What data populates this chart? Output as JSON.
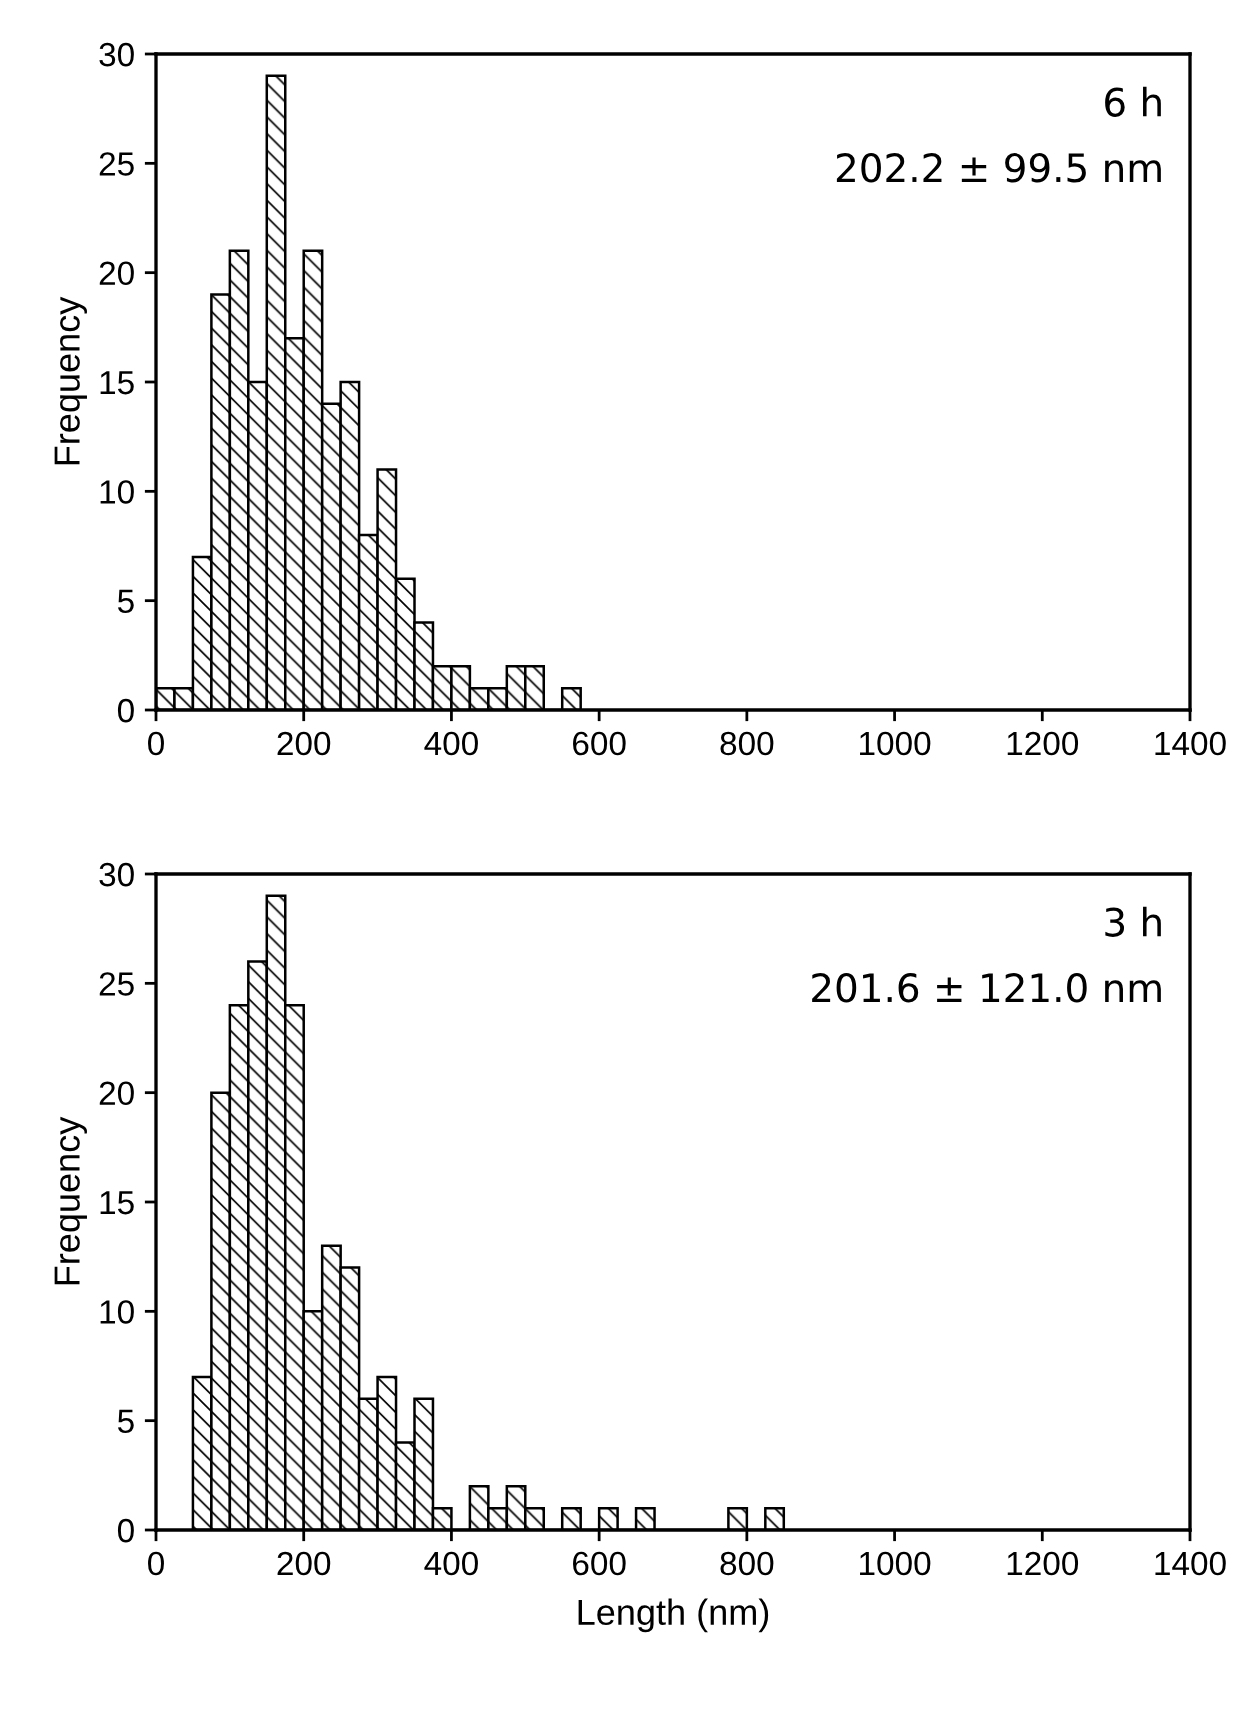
{
  "chart_data": [
    {
      "type": "histogram",
      "ylabel": "Frequency",
      "annotations": [
        "6 h",
        "202.2 ± 99.5 nm"
      ],
      "bins": [
        0,
        25,
        50,
        75,
        100,
        125,
        150,
        175,
        200,
        225,
        250,
        275,
        300,
        325,
        350,
        375,
        400,
        425,
        450,
        475,
        500,
        525,
        550,
        575
      ],
      "values": [
        1,
        1,
        7,
        19,
        21,
        15,
        29,
        17,
        21,
        14,
        15,
        8,
        11,
        6,
        4,
        2,
        2,
        1,
        1,
        2,
        2,
        0,
        1
      ],
      "xlim": [
        0,
        1400
      ],
      "xticks": [
        0,
        200,
        400,
        600,
        800,
        1000,
        1200,
        1400
      ],
      "ylim": [
        0,
        30
      ],
      "yticks": [
        0,
        5,
        10,
        15,
        20,
        25,
        30
      ],
      "grid": false
    },
    {
      "type": "histogram",
      "xlabel": "Length (nm)",
      "ylabel": "Frequency",
      "annotations": [
        "3 h",
        "201.6 ± 121.0 nm"
      ],
      "bins": [
        50,
        75,
        100,
        125,
        150,
        175,
        200,
        225,
        250,
        275,
        300,
        325,
        350,
        375,
        400,
        425,
        450,
        475,
        500,
        525,
        550,
        575,
        600,
        625,
        650,
        675,
        700,
        725,
        750,
        775,
        800,
        825,
        850
      ],
      "values": [
        7,
        20,
        24,
        26,
        29,
        24,
        10,
        13,
        12,
        6,
        7,
        4,
        6,
        1,
        0,
        2,
        1,
        2,
        1,
        0,
        1,
        0,
        1,
        0,
        1,
        0,
        0,
        0,
        0,
        1,
        0,
        1
      ],
      "xlim": [
        0,
        1400
      ],
      "xticks": [
        0,
        200,
        400,
        600,
        800,
        1000,
        1200,
        1400
      ],
      "ylim": [
        0,
        30
      ],
      "yticks": [
        0,
        5,
        10,
        15,
        20,
        25,
        30
      ],
      "grid": false
    }
  ]
}
